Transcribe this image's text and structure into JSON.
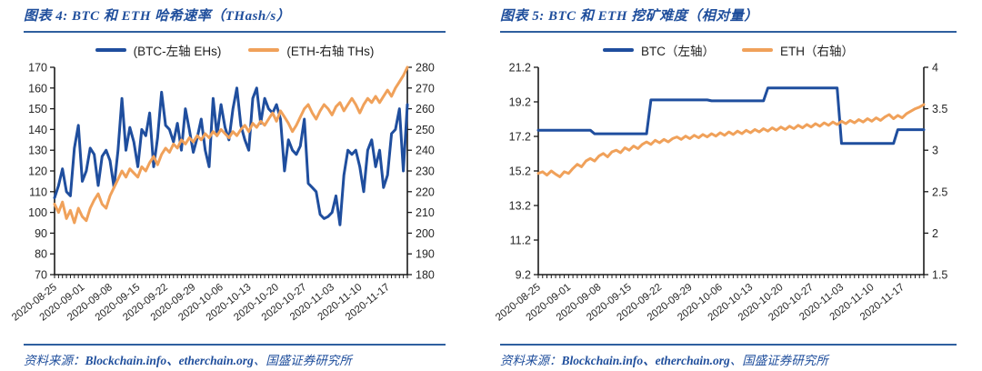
{
  "colors": {
    "accent_blue": "#1F4E9C",
    "rule_blue": "#2F5F9F",
    "btc_line": "#1F4E9E",
    "eth_line": "#F0A15A",
    "axis_text": "#262626"
  },
  "figures": [
    {
      "title": "图表 4: BTC 和 ETH 哈希速率（THash/s）",
      "source": {
        "label": "资料来源：",
        "sites": "Blockchain.info、etherchain.org",
        "suffix": "、国盛证券研究所"
      }
    },
    {
      "title": "图表 5: BTC 和 ETH 挖矿难度（相对量）",
      "source": {
        "label": "资料来源：",
        "sites": "Blockchain.info、etherchain.org",
        "suffix": "、国盛证券研究所"
      }
    }
  ],
  "chart_data": [
    {
      "type": "line",
      "title": "BTC 和 ETH 哈希速率（THash/s）",
      "grid": false,
      "legend_position": "top",
      "x_start": "2020-08-25",
      "x_end": "2020-11-22",
      "x_tick_labels": [
        "2020-08-25",
        "2020-09-01",
        "2020-09-08",
        "2020-09-15",
        "2020-09-22",
        "2020-09-29",
        "2020-10-06",
        "2020-10-13",
        "2020-10-20",
        "2020-10-27",
        "2020-11-03",
        "2020-11-10",
        "2020-11-17"
      ],
      "left_axis": {
        "min": 70,
        "max": 170,
        "step": 10,
        "ticks": [
          "170",
          "160",
          "150",
          "140",
          "130",
          "120",
          "110",
          "100",
          "90",
          "80",
          "70"
        ]
      },
      "right_axis": {
        "min": 180,
        "max": 280,
        "step": 10,
        "ticks": [
          "280",
          "270",
          "260",
          "250",
          "240",
          "230",
          "220",
          "210",
          "200",
          "190",
          "180"
        ]
      },
      "series": [
        {
          "name": "(BTC-左轴 EHs)",
          "axis": "left",
          "color": "#1F4E9E",
          "values": [
            107,
            113,
            121,
            110,
            108,
            131,
            142,
            115,
            120,
            131,
            128,
            113,
            127,
            130,
            125,
            112,
            130,
            155,
            130,
            141,
            134,
            122,
            140,
            137,
            148,
            122,
            136,
            158,
            142,
            140,
            134,
            143,
            130,
            150,
            140,
            129,
            136,
            145,
            130,
            122,
            155,
            137,
            152,
            141,
            135,
            150,
            160,
            142,
            135,
            130,
            155,
            160,
            143,
            155,
            150,
            148,
            152,
            145,
            120,
            135,
            130,
            128,
            132,
            145,
            114,
            112,
            110,
            99,
            97,
            98,
            100,
            108,
            94,
            118,
            130,
            128,
            130,
            122,
            110,
            130,
            135,
            122,
            130,
            112,
            118,
            138,
            140,
            150,
            120,
            152
          ]
        },
        {
          "name": "(ETH-右轴 THs)",
          "axis": "right",
          "color": "#F0A15A",
          "values": [
            214,
            210,
            215,
            207,
            211,
            205,
            212,
            208,
            206,
            212,
            216,
            219,
            214,
            212,
            218,
            222,
            226,
            230,
            227,
            231,
            229,
            227,
            232,
            230,
            234,
            237,
            233,
            238,
            241,
            239,
            243,
            241,
            245,
            243,
            246,
            244,
            247,
            245,
            248,
            246,
            249,
            247,
            250,
            248,
            246,
            249,
            247,
            250,
            252,
            249,
            253,
            251,
            254,
            252,
            255,
            258,
            254,
            259,
            256,
            253,
            249,
            252,
            256,
            260,
            262,
            258,
            255,
            259,
            262,
            260,
            257,
            261,
            263,
            259,
            262,
            265,
            262,
            258,
            262,
            265,
            263,
            266,
            263,
            266,
            269,
            266,
            270,
            273,
            276,
            280
          ]
        }
      ]
    },
    {
      "type": "line",
      "title": "BTC 和 ETH 挖矿难度（相对量）",
      "grid": false,
      "legend_position": "top",
      "x_start": "2020-08-25",
      "x_end": "2020-11-22",
      "x_tick_labels": [
        "2020-08-25",
        "2020-09-01",
        "2020-09-08",
        "2020-09-15",
        "2020-09-22",
        "2020-09-29",
        "2020-10-06",
        "2020-10-13",
        "2020-10-20",
        "2020-10-27",
        "2020-11-03",
        "2020-11-10",
        "2020-11-17"
      ],
      "left_axis": {
        "min": 9.2,
        "max": 21.2,
        "step": 2,
        "ticks": [
          "21.2",
          "19.2",
          "17.2",
          "15.2",
          "13.2",
          "11.2",
          "9.2"
        ]
      },
      "right_axis": {
        "min": 1.5,
        "max": 4,
        "step": 0.5,
        "ticks": [
          "4",
          "3.5",
          "3",
          "2.5",
          "2",
          "1.5"
        ]
      },
      "series": [
        {
          "name": "BTC（左轴）",
          "axis": "left",
          "color": "#1F4E9E",
          "values": [
            17.56,
            17.56,
            17.56,
            17.56,
            17.56,
            17.56,
            17.56,
            17.56,
            17.56,
            17.56,
            17.56,
            17.56,
            17.56,
            17.35,
            17.35,
            17.35,
            17.35,
            17.35,
            17.35,
            17.35,
            17.35,
            17.35,
            17.35,
            17.35,
            17.35,
            17.35,
            19.31,
            19.31,
            19.31,
            19.31,
            19.31,
            19.31,
            19.31,
            19.31,
            19.31,
            19.31,
            19.31,
            19.31,
            19.31,
            19.31,
            19.26,
            19.26,
            19.26,
            19.26,
            19.26,
            19.26,
            19.26,
            19.26,
            19.26,
            19.26,
            19.26,
            19.26,
            19.26,
            20.0,
            20.0,
            20.0,
            20.0,
            20.0,
            20.0,
            20.0,
            20.0,
            20.0,
            20.0,
            20.0,
            20.0,
            20.0,
            20.0,
            20.0,
            20.0,
            20.0,
            16.79,
            16.79,
            16.79,
            16.79,
            16.79,
            16.79,
            16.79,
            16.79,
            16.79,
            16.79,
            16.79,
            16.79,
            16.79,
            17.59,
            17.59,
            17.59,
            17.59,
            17.59,
            17.59,
            17.59
          ]
        },
        {
          "name": "ETH（右轴）",
          "axis": "right",
          "color": "#F0A15A",
          "values": [
            2.72,
            2.74,
            2.7,
            2.75,
            2.71,
            2.68,
            2.74,
            2.72,
            2.78,
            2.83,
            2.8,
            2.87,
            2.9,
            2.87,
            2.93,
            2.96,
            2.92,
            2.98,
            3.0,
            2.97,
            3.03,
            3.0,
            3.05,
            3.02,
            3.07,
            3.1,
            3.07,
            3.12,
            3.09,
            3.13,
            3.1,
            3.14,
            3.16,
            3.13,
            3.17,
            3.14,
            3.18,
            3.15,
            3.19,
            3.16,
            3.2,
            3.17,
            3.21,
            3.18,
            3.22,
            3.19,
            3.23,
            3.2,
            3.24,
            3.21,
            3.25,
            3.22,
            3.26,
            3.23,
            3.27,
            3.24,
            3.28,
            3.25,
            3.29,
            3.26,
            3.3,
            3.27,
            3.31,
            3.28,
            3.32,
            3.29,
            3.33,
            3.3,
            3.34,
            3.31,
            3.35,
            3.32,
            3.36,
            3.33,
            3.37,
            3.34,
            3.38,
            3.35,
            3.39,
            3.36,
            3.4,
            3.43,
            3.38,
            3.42,
            3.39,
            3.44,
            3.47,
            3.5,
            3.52,
            3.55
          ]
        }
      ]
    }
  ]
}
